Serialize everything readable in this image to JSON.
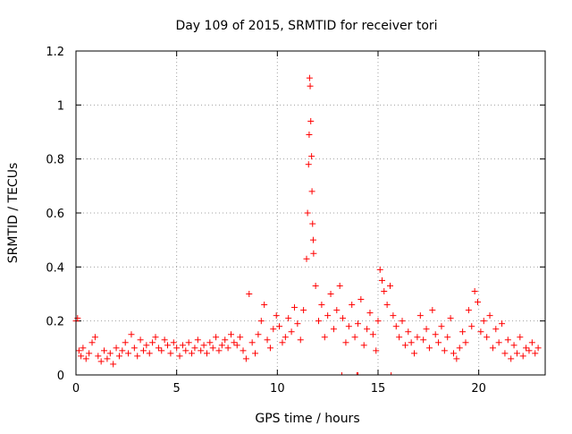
{
  "chart_data": {
    "type": "scatter",
    "title": "Day 109 of 2015, SRMTID for receiver tori",
    "xlabel": "GPS time / hours",
    "ylabel": "SRMTID / TECUs",
    "xlim": [
      0,
      23.3
    ],
    "ylim": [
      0,
      1.2
    ],
    "x_ticks": [
      0,
      5,
      10,
      15,
      20
    ],
    "y_ticks": [
      0,
      0.2,
      0.4,
      0.6,
      0.8,
      1,
      1.2
    ],
    "x_tick_labels": [
      "0",
      "5",
      "10",
      "15",
      "20"
    ],
    "y_tick_labels": [
      "0",
      "0.2",
      "0.4",
      "0.6",
      "0.8",
      "1",
      "1.2"
    ],
    "grid": true,
    "marker": "+",
    "color": "#ff0000",
    "series": [
      {
        "name": "SRMTID",
        "x": [
          0.0,
          0.08,
          0.15,
          0.25,
          0.35,
          0.5,
          0.65,
          0.8,
          0.95,
          1.1,
          1.25,
          1.4,
          1.55,
          1.7,
          1.85,
          2.0,
          2.15,
          2.3,
          2.45,
          2.6,
          2.75,
          2.9,
          3.05,
          3.2,
          3.35,
          3.5,
          3.65,
          3.8,
          3.95,
          4.1,
          4.25,
          4.4,
          4.55,
          4.7,
          4.85,
          5.0,
          5.15,
          5.3,
          5.45,
          5.6,
          5.75,
          5.9,
          6.05,
          6.2,
          6.35,
          6.5,
          6.65,
          6.8,
          6.95,
          7.1,
          7.25,
          7.4,
          7.55,
          7.7,
          7.85,
          8.0,
          8.15,
          8.3,
          8.45,
          8.6,
          8.75,
          8.9,
          9.05,
          9.2,
          9.35,
          9.5,
          9.65,
          9.8,
          9.95,
          10.1,
          10.25,
          10.4,
          10.55,
          10.7,
          10.85,
          11.0,
          11.15,
          11.3,
          11.45,
          11.5,
          11.55,
          11.58,
          11.6,
          11.63,
          11.66,
          11.7,
          11.72,
          11.75,
          11.78,
          11.8,
          11.9,
          12.05,
          12.2,
          12.35,
          12.5,
          12.65,
          12.8,
          12.95,
          13.1,
          13.25,
          13.4,
          13.55,
          13.7,
          13.85,
          14.0,
          14.15,
          14.3,
          14.45,
          14.6,
          14.75,
          14.9,
          15.0,
          15.1,
          15.2,
          15.3,
          15.45,
          15.6,
          15.75,
          15.9,
          16.05,
          16.2,
          16.35,
          16.5,
          16.65,
          16.8,
          16.95,
          17.1,
          17.25,
          17.4,
          17.55,
          17.7,
          17.85,
          18.0,
          18.15,
          18.3,
          18.45,
          18.6,
          18.75,
          18.9,
          19.05,
          19.2,
          19.35,
          19.5,
          19.65,
          19.8,
          19.95,
          20.1,
          20.25,
          20.4,
          20.55,
          20.7,
          20.85,
          21.0,
          21.15,
          21.3,
          21.45,
          21.6,
          21.75,
          21.9,
          22.05,
          22.2,
          22.35,
          22.5,
          22.65,
          22.8,
          22.95
        ],
        "y": [
          0.2,
          0.21,
          0.09,
          0.07,
          0.1,
          0.06,
          0.08,
          0.12,
          0.14,
          0.07,
          0.05,
          0.09,
          0.06,
          0.08,
          0.04,
          0.1,
          0.07,
          0.09,
          0.12,
          0.08,
          0.15,
          0.1,
          0.07,
          0.13,
          0.09,
          0.11,
          0.08,
          0.12,
          0.14,
          0.1,
          0.09,
          0.13,
          0.11,
          0.08,
          0.12,
          0.1,
          0.07,
          0.11,
          0.09,
          0.12,
          0.08,
          0.1,
          0.13,
          0.09,
          0.11,
          0.08,
          0.12,
          0.1,
          0.14,
          0.09,
          0.11,
          0.13,
          0.1,
          0.15,
          0.12,
          0.11,
          0.14,
          0.09,
          0.06,
          0.3,
          0.12,
          0.08,
          0.15,
          0.2,
          0.26,
          0.13,
          0.1,
          0.17,
          0.22,
          0.18,
          0.12,
          0.14,
          0.21,
          0.16,
          0.25,
          0.19,
          0.13,
          0.24,
          0.43,
          0.6,
          0.78,
          0.89,
          1.1,
          1.07,
          0.94,
          0.81,
          0.68,
          0.56,
          0.5,
          0.45,
          0.33,
          0.2,
          0.26,
          0.14,
          0.22,
          0.3,
          0.17,
          0.24,
          0.33,
          0.21,
          0.12,
          0.18,
          0.26,
          0.14,
          0.19,
          0.28,
          0.11,
          0.17,
          0.23,
          0.15,
          0.09,
          0.2,
          0.39,
          0.35,
          0.31,
          0.26,
          0.33,
          0.22,
          0.18,
          0.14,
          0.2,
          0.11,
          0.16,
          0.12,
          0.08,
          0.14,
          0.22,
          0.13,
          0.17,
          0.1,
          0.24,
          0.15,
          0.12,
          0.18,
          0.09,
          0.14,
          0.21,
          0.08,
          0.06,
          0.1,
          0.16,
          0.12,
          0.24,
          0.18,
          0.31,
          0.27,
          0.16,
          0.2,
          0.14,
          0.22,
          0.1,
          0.17,
          0.12,
          0.19,
          0.08,
          0.13,
          0.06,
          0.11,
          0.08,
          0.14,
          0.07,
          0.1,
          0.09,
          0.12,
          0.08,
          0.1
        ],
        "zero_drops": [
          13.2,
          13.95,
          14.0,
          15.65
        ]
      }
    ]
  }
}
